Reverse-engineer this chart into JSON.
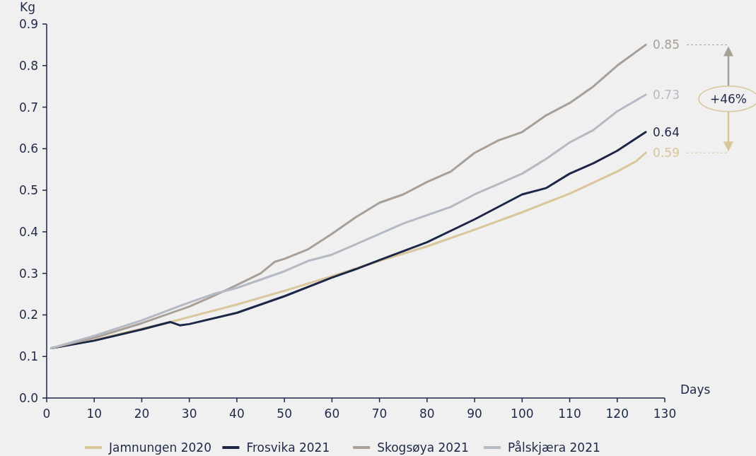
{
  "chart_data": {
    "type": "line",
    "xlabel": "Days",
    "ylabel": "Kg",
    "xlim": [
      0,
      130
    ],
    "xticks": [
      0,
      10,
      20,
      30,
      40,
      50,
      60,
      70,
      80,
      90,
      100,
      110,
      120,
      130
    ],
    "ylim": [
      0,
      0.9
    ],
    "yticks": [
      {
        "value": 0,
        "label": "0.0"
      },
      0.1,
      0.2,
      0.3,
      0.4,
      0.5,
      0.6,
      0.7,
      0.8,
      0.9
    ],
    "grid": false,
    "legend": "bottom",
    "marker": "none",
    "line_style": "solid",
    "annotations": [
      "+46%"
    ],
    "series": [
      {
        "name": "Jamnungen 2020",
        "color": "#d9c69a",
        "x": [
          1,
          10,
          20,
          26,
          30,
          40,
          50,
          60,
          70,
          80,
          90,
          100,
          110,
          120,
          124,
          126
        ],
        "values": [
          0.12,
          0.14,
          0.167,
          0.183,
          0.195,
          0.225,
          0.258,
          0.293,
          0.33,
          0.365,
          0.405,
          0.447,
          0.492,
          0.545,
          0.57,
          0.59
        ],
        "value_labels": [
          null,
          null,
          null,
          null,
          null,
          null,
          null,
          null,
          null,
          null,
          null,
          null,
          null,
          null,
          null,
          "0.59"
        ]
      },
      {
        "name": "Frosvika 2021",
        "color": "#1c2747",
        "x": [
          1,
          10,
          20,
          26,
          28,
          30,
          40,
          50,
          60,
          65,
          70,
          80,
          90,
          100,
          105,
          110,
          115,
          120,
          126
        ],
        "values": [
          0.12,
          0.138,
          0.165,
          0.183,
          0.175,
          0.178,
          0.205,
          0.245,
          0.29,
          0.31,
          0.332,
          0.375,
          0.43,
          0.49,
          0.505,
          0.54,
          0.565,
          0.595,
          0.64
        ],
        "value_labels": [
          null,
          null,
          null,
          null,
          null,
          null,
          null,
          null,
          null,
          null,
          null,
          null,
          null,
          null,
          null,
          null,
          null,
          null,
          "0.64"
        ]
      },
      {
        "name": "Skogsøya 2021",
        "color": "#a89f97",
        "x": [
          1,
          10,
          20,
          30,
          35,
          40,
          45,
          48,
          50,
          55,
          60,
          65,
          70,
          75,
          80,
          85,
          90,
          95,
          100,
          105,
          110,
          115,
          120,
          126
        ],
        "values": [
          0.12,
          0.145,
          0.18,
          0.22,
          0.245,
          0.272,
          0.3,
          0.328,
          0.335,
          0.358,
          0.395,
          0.435,
          0.47,
          0.49,
          0.52,
          0.545,
          0.59,
          0.62,
          0.64,
          0.68,
          0.71,
          0.75,
          0.8,
          0.85
        ],
        "value_labels": [
          null,
          null,
          null,
          null,
          null,
          null,
          null,
          null,
          null,
          null,
          null,
          null,
          null,
          null,
          null,
          null,
          null,
          null,
          null,
          null,
          null,
          null,
          null,
          "0.85"
        ]
      },
      {
        "name": "Pålskjæra 2021",
        "color": "#b4b9c3",
        "x": [
          1,
          10,
          20,
          30,
          35,
          40,
          45,
          50,
          55,
          60,
          65,
          70,
          75,
          80,
          85,
          90,
          95,
          100,
          105,
          110,
          115,
          120,
          126
        ],
        "values": [
          0.12,
          0.15,
          0.187,
          0.23,
          0.25,
          0.265,
          0.285,
          0.305,
          0.33,
          0.345,
          0.37,
          0.395,
          0.42,
          0.44,
          0.46,
          0.49,
          0.515,
          0.54,
          0.575,
          0.615,
          0.645,
          0.69,
          0.73
        ],
        "value_labels": [
          null,
          null,
          null,
          null,
          null,
          null,
          null,
          null,
          null,
          null,
          null,
          null,
          null,
          null,
          null,
          null,
          null,
          null,
          null,
          null,
          null,
          null,
          "0.73"
        ]
      }
    ]
  }
}
